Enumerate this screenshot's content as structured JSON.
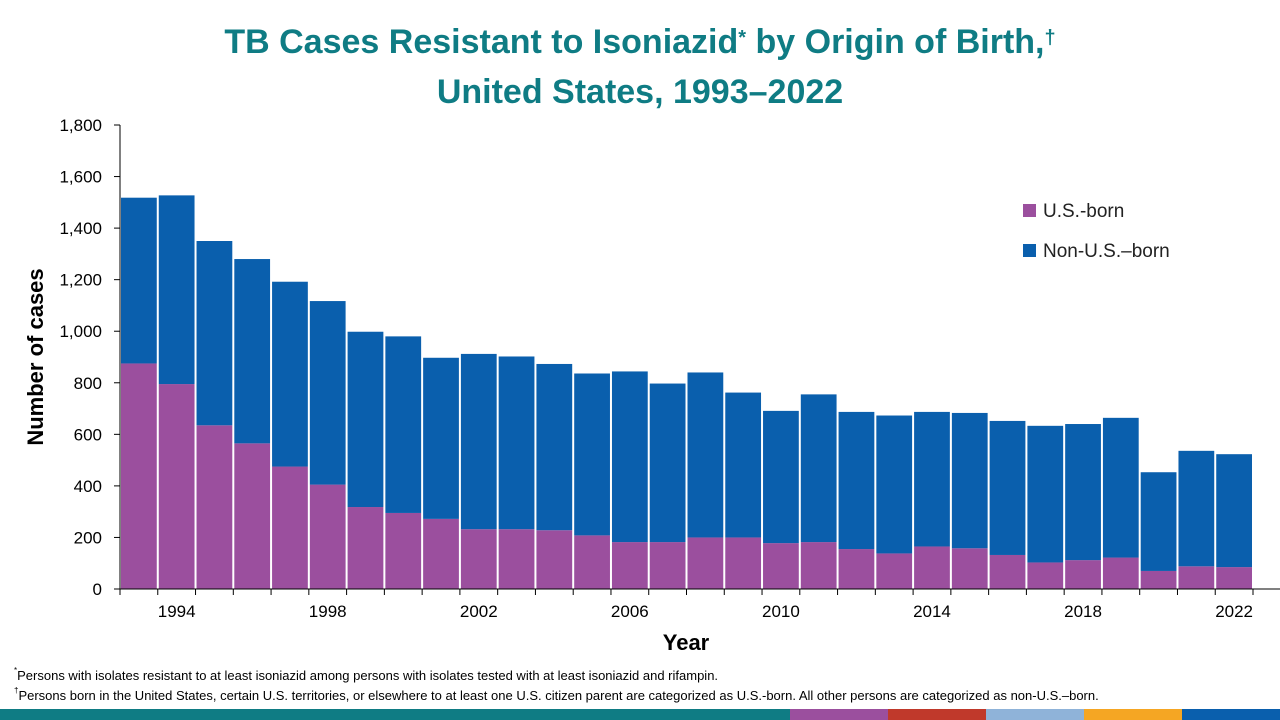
{
  "title": {
    "line1_a": "TB Cases Resistant to Isoniazid",
    "line1_mark1": "*",
    "line1_b": " by Origin of Birth,",
    "line1_mark2": "†",
    "line2": "United States, 1993–2022"
  },
  "footnotes": [
    {
      "mark": "*",
      "text": "Persons with isolates resistant to at least isoniazid among persons with isolates tested with at least isoniazid and rifampin."
    },
    {
      "mark": "†",
      "text": "Persons born in the United States, certain U.S. territories, or elsewhere to at least one U.S. citizen parent are categorized as U.S.-born. All other persons are categorized as non-U.S.–born."
    }
  ],
  "bottom_bar_colors": [
    "#0f7c84",
    "#9b4f9e",
    "#c0392b",
    "#8fb3d9",
    "#f5a623",
    "#0a5fad"
  ],
  "chart_data": {
    "type": "bar",
    "stacked": true,
    "xlabel": "Year",
    "ylabel": "Number of cases",
    "ylim": [
      0,
      1800
    ],
    "yticks": [
      0,
      200,
      400,
      600,
      800,
      1000,
      1200,
      1400,
      1600,
      1800
    ],
    "ytick_labels": [
      "0",
      "200",
      "400",
      "600",
      "800",
      "1,000",
      "1,200",
      "1,400",
      "1,600",
      "1,800"
    ],
    "xtick_labels": [
      "1994",
      "1998",
      "2002",
      "2006",
      "2010",
      "2014",
      "2018",
      "2022"
    ],
    "legend_position": "top-right",
    "categories": [
      1993,
      1994,
      1995,
      1996,
      1997,
      1998,
      1999,
      2000,
      2001,
      2002,
      2003,
      2004,
      2005,
      2006,
      2007,
      2008,
      2009,
      2010,
      2011,
      2012,
      2013,
      2014,
      2015,
      2016,
      2017,
      2018,
      2019,
      2020,
      2021,
      2022
    ],
    "series": [
      {
        "name": "U.S.-born",
        "color": "#9b4f9e",
        "values": [
          875,
          795,
          635,
          565,
          475,
          405,
          318,
          295,
          272,
          232,
          232,
          228,
          208,
          182,
          182,
          200,
          200,
          178,
          182,
          155,
          138,
          165,
          158,
          132,
          103,
          112,
          122,
          70,
          88,
          85
        ]
      },
      {
        "name": "Non-U.S.–born",
        "color": "#0a5fad",
        "values": [
          643,
          732,
          715,
          715,
          717,
          712,
          680,
          685,
          625,
          680,
          670,
          645,
          628,
          662,
          615,
          640,
          562,
          513,
          573,
          532,
          535,
          522,
          525,
          520,
          530,
          528,
          542,
          383,
          448,
          438
        ]
      }
    ]
  }
}
